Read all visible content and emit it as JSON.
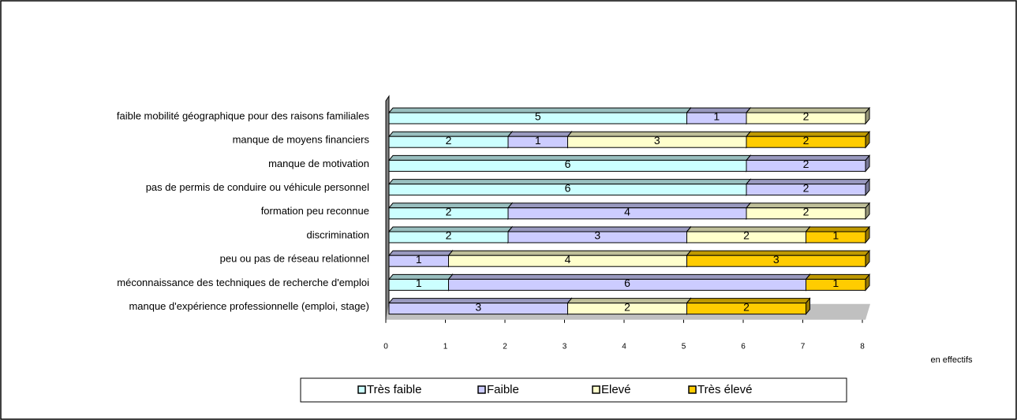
{
  "chart_data": {
    "type": "bar3d_stacked_horizontal",
    "categories": [
      "faible mobilité géographique pour des raisons familiales",
      "manque de moyens financiers",
      "manque de motivation",
      "pas de permis de conduire ou véhicule personnel",
      "formation peu reconnue",
      "discrimination",
      "peu ou pas de réseau relationnel",
      "méconnaissance des techniques de recherche d'emploi",
      "manque d'expérience professionnelle (emploi, stage)"
    ],
    "series": [
      {
        "name": "Très faible",
        "color": "#ccffff",
        "values": [
          5,
          2,
          6,
          6,
          2,
          2,
          null,
          1,
          null
        ]
      },
      {
        "name": "Faible",
        "color": "#ccccff",
        "values": [
          1,
          1,
          2,
          2,
          4,
          3,
          1,
          6,
          3
        ]
      },
      {
        "name": "Elevé",
        "color": "#ffffcc",
        "values": [
          2,
          3,
          null,
          null,
          2,
          2,
          4,
          null,
          2
        ]
      },
      {
        "name": "Très élevé",
        "color": "#ffcc00",
        "values": [
          null,
          2,
          null,
          null,
          null,
          1,
          3,
          1,
          2
        ]
      }
    ],
    "x_label": "en effectifs",
    "xlim": [
      0,
      8
    ],
    "xticks": [
      0,
      1,
      2,
      3,
      4,
      5,
      6,
      7,
      8
    ],
    "legend": "bottom"
  }
}
